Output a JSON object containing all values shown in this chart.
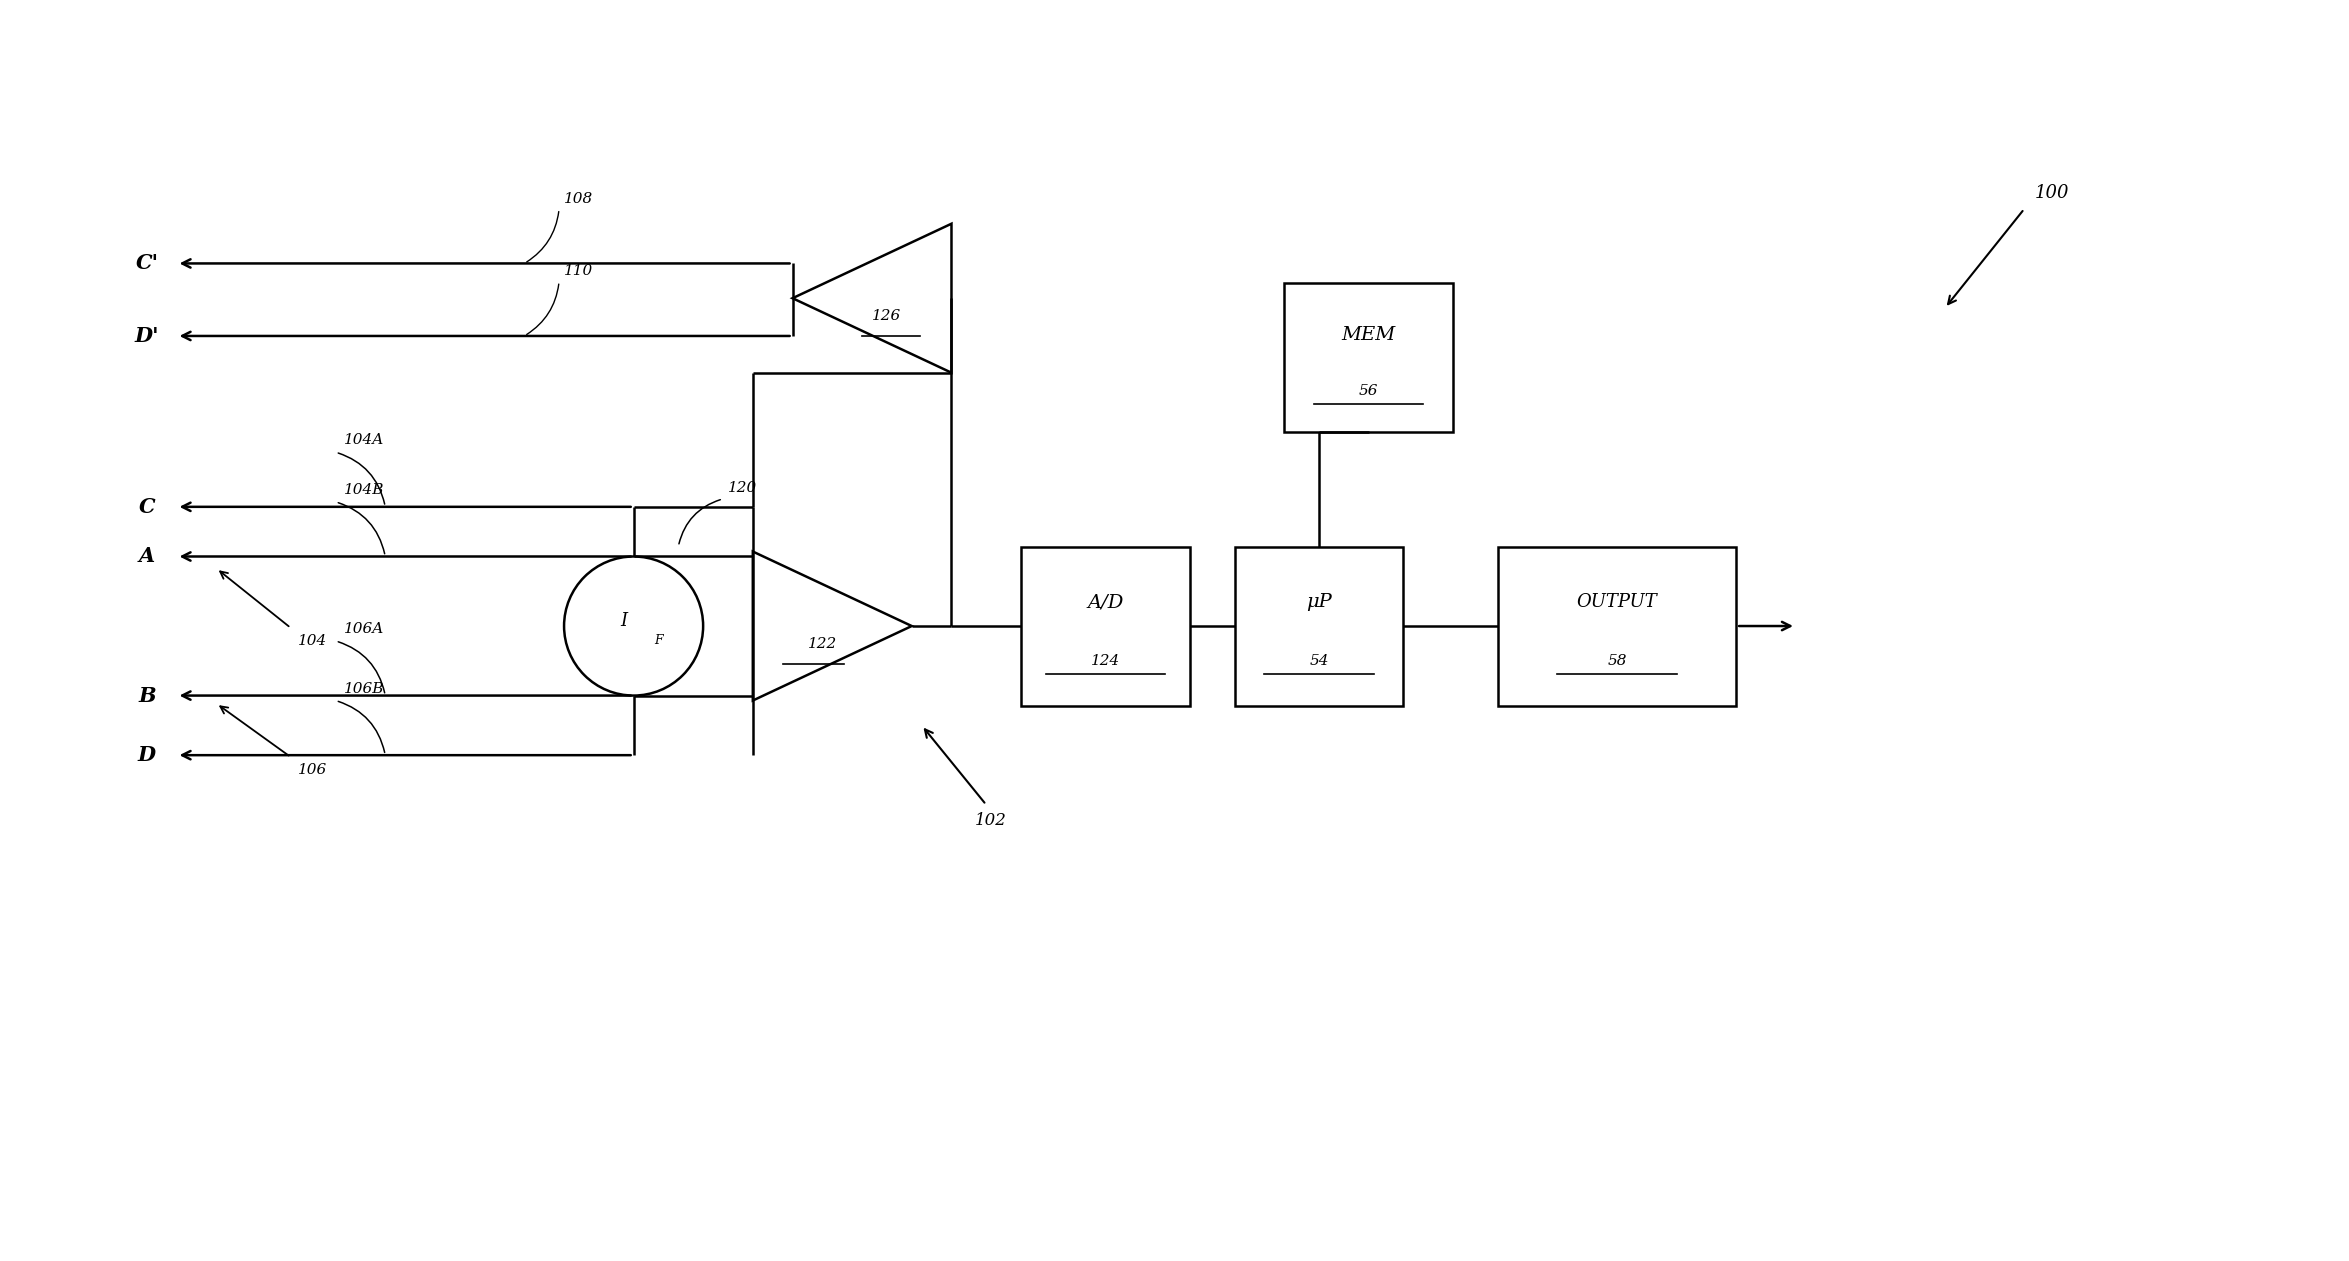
{
  "bg_color": "#ffffff",
  "fig_width": 23.49,
  "fig_height": 12.61,
  "dpi": 100,
  "labels": {
    "C_prime": "C'",
    "D_prime": "D'",
    "C": "C",
    "A": "A",
    "B": "B",
    "D": "D",
    "label_108": "108",
    "label_110": "110",
    "label_104A": "104A",
    "label_104B": "104B",
    "label_104": "104",
    "label_106": "106",
    "label_106A": "106A",
    "label_106B": "106B",
    "label_120": "120",
    "label_122": "122",
    "label_126": "126",
    "label_124": "124",
    "label_54": "54",
    "label_56": "56",
    "label_58": "58",
    "label_100": "100",
    "label_102": "102",
    "IF": "I",
    "IF_sub": "F",
    "AD": "A/D",
    "uP": "μP",
    "MEM": "MEM",
    "OUTPUT": "OUTPUT"
  }
}
